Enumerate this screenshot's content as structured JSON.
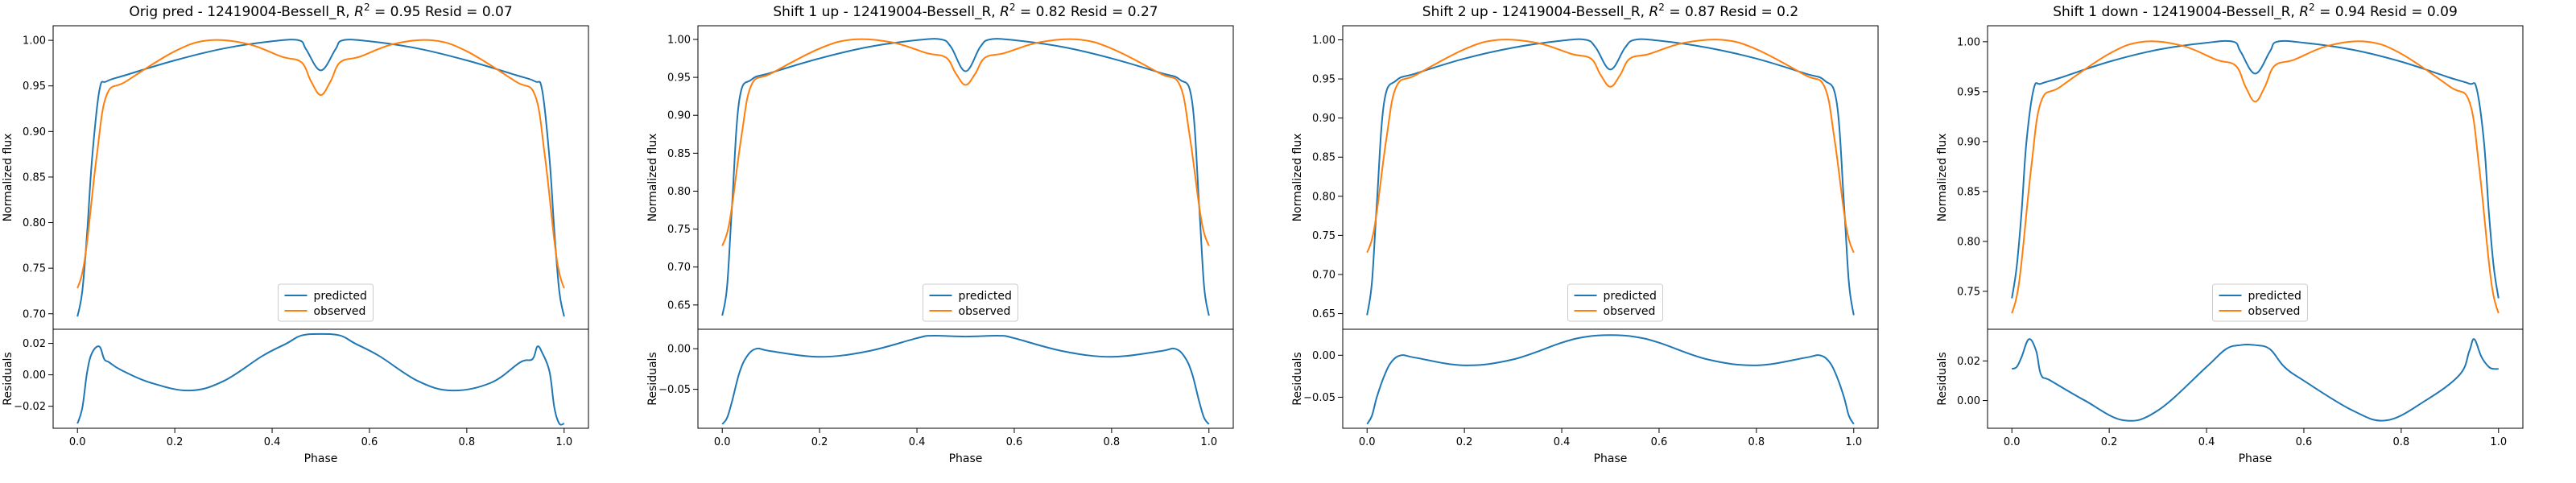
{
  "colors": {
    "predicted": "#1f77b4",
    "observed": "#ff7f0e",
    "axis": "#000000",
    "legend_border": "#cccccc"
  },
  "chart_data": [
    {
      "type": "line",
      "title": "Orig pred - 12419004-Bessell_R, R² = 0.95 Resid = 0.07",
      "title_parts": {
        "prefix": "Orig pred - 12419004-Bessell_R, ",
        "r": "R",
        "sup": "2",
        "suffix": " = 0.95 Resid = 0.07"
      },
      "top": {
        "ylabel": "Normalized flux",
        "ylim": [
          0.683,
          1.016
        ],
        "yticks": [
          0.7,
          0.75,
          0.8,
          0.85,
          0.9,
          0.95,
          1.0
        ],
        "ytick_labels": [
          "0.70",
          "0.75",
          "0.80",
          "0.85",
          "0.90",
          "0.95",
          "1.00"
        ],
        "legend": {
          "position": "lower center",
          "entries": [
            "predicted",
            "observed"
          ]
        },
        "series": [
          {
            "name": "predicted",
            "x": [
              0.0,
              0.01,
              0.02,
              0.03,
              0.045,
              0.06,
              0.1,
              0.2,
              0.3,
              0.4,
              0.455,
              0.47,
              0.5,
              0.53,
              0.545,
              0.6,
              0.7,
              0.8,
              0.9,
              0.94,
              0.955,
              0.97,
              0.98,
              0.99,
              1.0
            ],
            "y": [
              0.697,
              0.725,
              0.79,
              0.87,
              0.945,
              0.955,
              0.962,
              0.978,
              0.991,
              0.999,
              1.0,
              0.99,
              0.967,
              0.99,
              1.0,
              0.999,
              0.991,
              0.978,
              0.962,
              0.955,
              0.945,
              0.87,
              0.79,
              0.725,
              0.697
            ]
          },
          {
            "name": "observed",
            "x": [
              0.0,
              0.01,
              0.02,
              0.04,
              0.06,
              0.1,
              0.2,
              0.27,
              0.35,
              0.42,
              0.46,
              0.48,
              0.5,
              0.52,
              0.54,
              0.58,
              0.65,
              0.73,
              0.8,
              0.9,
              0.94,
              0.96,
              0.98,
              0.99,
              1.0
            ],
            "y": [
              0.728,
              0.745,
              0.78,
              0.875,
              0.94,
              0.955,
              0.988,
              1.0,
              0.996,
              0.982,
              0.976,
              0.955,
              0.94,
              0.955,
              0.976,
              0.982,
              0.996,
              1.0,
              0.988,
              0.955,
              0.94,
              0.875,
              0.78,
              0.745,
              0.728
            ]
          }
        ]
      },
      "bottom": {
        "ylabel": "Residuals",
        "xlabel": "Phase",
        "xlim": [
          -0.05,
          1.05
        ],
        "xticks": [
          0.0,
          0.2,
          0.4,
          0.6,
          0.8,
          1.0
        ],
        "xtick_labels": [
          "0.0",
          "0.2",
          "0.4",
          "0.6",
          "0.8",
          "1.0"
        ],
        "ylim": [
          -0.034,
          0.029
        ],
        "yticks": [
          -0.02,
          0.0,
          0.02
        ],
        "ytick_labels": [
          "−0.02",
          "0.00",
          "0.02"
        ],
        "series": [
          {
            "name": "residual",
            "x": [
              0.0,
              0.01,
              0.02,
              0.03,
              0.045,
              0.055,
              0.065,
              0.09,
              0.15,
              0.23,
              0.3,
              0.38,
              0.43,
              0.46,
              0.5,
              0.54,
              0.57,
              0.62,
              0.7,
              0.77,
              0.85,
              0.91,
              0.935,
              0.945,
              0.955,
              0.97,
              0.98,
              0.99,
              1.0
            ],
            "y": [
              -0.031,
              -0.021,
              0.002,
              0.014,
              0.018,
              0.01,
              0.008,
              0.003,
              -0.005,
              -0.01,
              -0.004,
              0.012,
              0.02,
              0.025,
              0.026,
              0.025,
              0.02,
              0.012,
              -0.004,
              -0.01,
              -0.005,
              0.008,
              0.01,
              0.018,
              0.014,
              0.002,
              -0.021,
              -0.031,
              -0.031
            ]
          }
        ]
      }
    },
    {
      "type": "line",
      "title": "Shift 1 up - 12419004-Bessell_R, R² = 0.82 Resid = 0.27",
      "title_parts": {
        "prefix": "Shift 1 up - 12419004-Bessell_R, ",
        "r": "R",
        "sup": "2",
        "suffix": " = 0.82 Resid = 0.27"
      },
      "top": {
        "ylabel": "Normalized flux",
        "ylim": [
          0.618,
          1.018
        ],
        "yticks": [
          0.65,
          0.7,
          0.75,
          0.8,
          0.85,
          0.9,
          0.95,
          1.0
        ],
        "ytick_labels": [
          "0.65",
          "0.70",
          "0.75",
          "0.80",
          "0.85",
          "0.90",
          "0.95",
          "1.00"
        ],
        "legend": {
          "position": "lower center",
          "entries": [
            "predicted",
            "observed"
          ]
        },
        "series": [
          {
            "name": "predicted",
            "x": [
              0.0,
              0.01,
              0.02,
              0.035,
              0.06,
              0.1,
              0.2,
              0.3,
              0.4,
              0.45,
              0.47,
              0.5,
              0.53,
              0.55,
              0.6,
              0.7,
              0.8,
              0.9,
              0.94,
              0.965,
              0.98,
              0.99,
              1.0
            ],
            "y": [
              0.636,
              0.675,
              0.78,
              0.92,
              0.947,
              0.956,
              0.975,
              0.99,
              0.999,
              1.0,
              0.99,
              0.958,
              0.99,
              1.0,
              0.999,
              0.99,
              0.975,
              0.956,
              0.947,
              0.92,
              0.78,
              0.675,
              0.636
            ]
          },
          {
            "name": "observed",
            "x": [
              0.0,
              0.01,
              0.02,
              0.04,
              0.06,
              0.1,
              0.2,
              0.27,
              0.35,
              0.42,
              0.46,
              0.48,
              0.5,
              0.52,
              0.54,
              0.58,
              0.65,
              0.73,
              0.8,
              0.9,
              0.94,
              0.96,
              0.98,
              0.99,
              1.0
            ],
            "y": [
              0.728,
              0.745,
              0.78,
              0.875,
              0.94,
              0.955,
              0.988,
              1.0,
              0.996,
              0.982,
              0.976,
              0.955,
              0.94,
              0.955,
              0.976,
              0.982,
              0.996,
              1.0,
              0.988,
              0.955,
              0.94,
              0.875,
              0.78,
              0.745,
              0.728
            ]
          }
        ]
      },
      "bottom": {
        "ylabel": "Residuals",
        "xlabel": "Phase",
        "xlim": [
          -0.05,
          1.05
        ],
        "xticks": [
          0.0,
          0.2,
          0.4,
          0.6,
          0.8,
          1.0
        ],
        "xtick_labels": [
          "0.0",
          "0.2",
          "0.4",
          "0.6",
          "0.8",
          "1.0"
        ],
        "ylim": [
          -0.098,
          0.024
        ],
        "yticks": [
          -0.05,
          0.0
        ],
        "ytick_labels": [
          "−0.05",
          "0.00"
        ],
        "series": [
          {
            "name": "residual",
            "x": [
              0.0,
              0.01,
              0.02,
              0.035,
              0.05,
              0.07,
              0.1,
              0.2,
              0.3,
              0.4,
              0.43,
              0.5,
              0.57,
              0.6,
              0.7,
              0.8,
              0.9,
              0.93,
              0.95,
              0.965,
              0.98,
              0.99,
              1.0
            ],
            "y": [
              -0.093,
              -0.085,
              -0.065,
              -0.03,
              -0.01,
              0.0,
              -0.003,
              -0.01,
              -0.003,
              0.013,
              0.016,
              0.015,
              0.016,
              0.013,
              -0.003,
              -0.01,
              -0.003,
              0.0,
              -0.01,
              -0.03,
              -0.065,
              -0.085,
              -0.093
            ]
          }
        ]
      }
    },
    {
      "type": "line",
      "title": "Shift 2 up - 12419004-Bessell_R, R² = 0.87 Resid = 0.2",
      "title_parts": {
        "prefix": "Shift 2 up - 12419004-Bessell_R, ",
        "r": "R",
        "sup": "2",
        "suffix": " = 0.87 Resid = 0.2"
      },
      "top": {
        "ylabel": "Normalized flux",
        "ylim": [
          0.63,
          1.018
        ],
        "yticks": [
          0.65,
          0.7,
          0.75,
          0.8,
          0.85,
          0.9,
          0.95,
          1.0
        ],
        "ytick_labels": [
          "0.65",
          "0.70",
          "0.75",
          "0.80",
          "0.85",
          "0.90",
          "0.95",
          "1.00"
        ],
        "legend": {
          "position": "lower center",
          "entries": [
            "predicted",
            "observed"
          ]
        },
        "series": [
          {
            "name": "predicted",
            "x": [
              0.0,
              0.01,
              0.02,
              0.035,
              0.06,
              0.1,
              0.2,
              0.3,
              0.4,
              0.45,
              0.47,
              0.5,
              0.53,
              0.55,
              0.6,
              0.7,
              0.8,
              0.9,
              0.94,
              0.965,
              0.98,
              0.99,
              1.0
            ],
            "y": [
              0.648,
              0.69,
              0.79,
              0.92,
              0.948,
              0.957,
              0.976,
              0.99,
              0.999,
              1.0,
              0.99,
              0.962,
              0.99,
              1.0,
              0.999,
              0.99,
              0.976,
              0.957,
              0.948,
              0.92,
              0.79,
              0.69,
              0.648
            ]
          },
          {
            "name": "observed",
            "x": [
              0.0,
              0.01,
              0.02,
              0.04,
              0.06,
              0.1,
              0.2,
              0.27,
              0.35,
              0.42,
              0.46,
              0.48,
              0.5,
              0.52,
              0.54,
              0.58,
              0.65,
              0.73,
              0.8,
              0.9,
              0.94,
              0.96,
              0.98,
              0.99,
              1.0
            ],
            "y": [
              0.728,
              0.745,
              0.78,
              0.875,
              0.94,
              0.955,
              0.988,
              1.0,
              0.996,
              0.982,
              0.976,
              0.955,
              0.94,
              0.955,
              0.976,
              0.982,
              0.996,
              1.0,
              0.988,
              0.955,
              0.94,
              0.875,
              0.78,
              0.745,
              0.728
            ]
          }
        ]
      },
      "bottom": {
        "ylabel": "Residuals",
        "xlabel": "Phase",
        "xlim": [
          -0.05,
          1.05
        ],
        "xticks": [
          0.0,
          0.2,
          0.4,
          0.6,
          0.8,
          1.0
        ],
        "xtick_labels": [
          "0.0",
          "0.2",
          "0.4",
          "0.6",
          "0.8",
          "1.0"
        ],
        "ylim": [
          -0.087,
          0.031
        ],
        "yticks": [
          -0.05,
          0.0
        ],
        "ytick_labels": [
          "−0.05",
          "0.00"
        ],
        "series": [
          {
            "name": "residual",
            "x": [
              0.0,
              0.01,
              0.02,
              0.035,
              0.05,
              0.07,
              0.1,
              0.2,
              0.3,
              0.4,
              0.45,
              0.5,
              0.55,
              0.6,
              0.7,
              0.8,
              0.9,
              0.93,
              0.95,
              0.965,
              0.98,
              0.99,
              1.0
            ],
            "y": [
              -0.082,
              -0.072,
              -0.05,
              -0.025,
              -0.008,
              0.0,
              -0.003,
              -0.012,
              -0.005,
              0.015,
              0.022,
              0.024,
              0.022,
              0.015,
              -0.005,
              -0.012,
              -0.003,
              0.0,
              -0.008,
              -0.025,
              -0.05,
              -0.072,
              -0.082
            ]
          }
        ]
      }
    },
    {
      "type": "line",
      "title": "Shift 1 down - 12419004-Bessell_R, R² = 0.94 Resid = 0.09",
      "title_parts": {
        "prefix": "Shift 1 down - 12419004-Bessell_R, ",
        "r": "R",
        "sup": "2",
        "suffix": " = 0.94 Resid = 0.09"
      },
      "top": {
        "ylabel": "Normalized flux",
        "ylim": [
          0.712,
          1.016
        ],
        "yticks": [
          0.75,
          0.8,
          0.85,
          0.9,
          0.95,
          1.0
        ],
        "ytick_labels": [
          "0.75",
          "0.80",
          "0.85",
          "0.90",
          "0.95",
          "1.00"
        ],
        "legend": {
          "position": "lower center",
          "entries": [
            "predicted",
            "observed"
          ]
        },
        "series": [
          {
            "name": "predicted",
            "x": [
              0.0,
              0.01,
              0.02,
              0.03,
              0.045,
              0.06,
              0.1,
              0.2,
              0.3,
              0.4,
              0.455,
              0.47,
              0.5,
              0.53,
              0.545,
              0.6,
              0.7,
              0.8,
              0.9,
              0.94,
              0.955,
              0.97,
              0.98,
              0.99,
              1.0
            ],
            "y": [
              0.743,
              0.775,
              0.83,
              0.9,
              0.953,
              0.958,
              0.964,
              0.98,
              0.992,
              0.999,
              1.0,
              0.99,
              0.968,
              0.99,
              1.0,
              0.999,
              0.992,
              0.98,
              0.964,
              0.958,
              0.953,
              0.9,
              0.83,
              0.775,
              0.743
            ]
          },
          {
            "name": "observed",
            "x": [
              0.0,
              0.01,
              0.02,
              0.04,
              0.06,
              0.1,
              0.2,
              0.27,
              0.35,
              0.42,
              0.46,
              0.48,
              0.5,
              0.52,
              0.54,
              0.58,
              0.65,
              0.73,
              0.8,
              0.9,
              0.94,
              0.96,
              0.98,
              0.99,
              1.0
            ],
            "y": [
              0.728,
              0.745,
              0.78,
              0.875,
              0.94,
              0.955,
              0.988,
              1.0,
              0.996,
              0.982,
              0.976,
              0.955,
              0.94,
              0.955,
              0.976,
              0.982,
              0.996,
              1.0,
              0.988,
              0.955,
              0.94,
              0.875,
              0.78,
              0.745,
              0.728
            ]
          }
        ]
      },
      "bottom": {
        "ylabel": "Residuals",
        "xlabel": "Phase",
        "xlim": [
          -0.05,
          1.05
        ],
        "xticks": [
          0.0,
          0.2,
          0.4,
          0.6,
          0.8,
          1.0
        ],
        "xtick_labels": [
          "0.0",
          "0.2",
          "0.4",
          "0.6",
          "0.8",
          "1.0"
        ],
        "ylim": [
          -0.014,
          0.036
        ],
        "yticks": [
          0.0,
          0.02
        ],
        "ytick_labels": [
          "0.00",
          "0.02"
        ],
        "series": [
          {
            "name": "residual",
            "x": [
              0.0,
              0.01,
              0.02,
              0.035,
              0.05,
              0.06,
              0.08,
              0.15,
              0.23,
              0.3,
              0.4,
              0.44,
              0.47,
              0.5,
              0.53,
              0.56,
              0.6,
              0.7,
              0.77,
              0.85,
              0.92,
              0.94,
              0.95,
              0.965,
              0.98,
              0.99,
              1.0
            ],
            "y": [
              0.016,
              0.017,
              0.022,
              0.031,
              0.025,
              0.013,
              0.01,
              0.0,
              -0.01,
              -0.005,
              0.017,
              0.026,
              0.028,
              0.028,
              0.026,
              0.017,
              0.01,
              -0.005,
              -0.01,
              0.0,
              0.013,
              0.025,
              0.031,
              0.022,
              0.017,
              0.016,
              0.016
            ]
          }
        ]
      }
    }
  ]
}
